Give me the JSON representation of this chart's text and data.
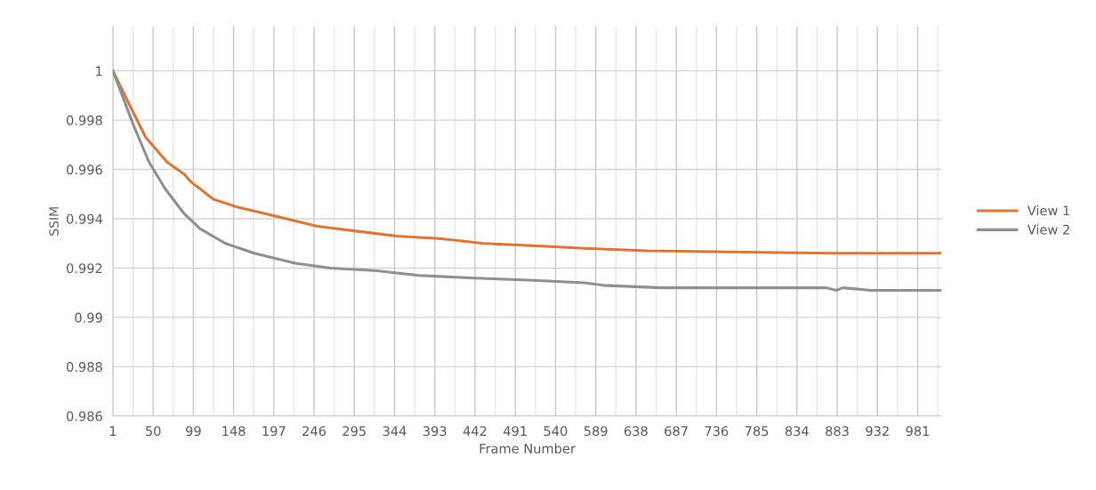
{
  "chart_data": {
    "type": "line",
    "xlabel": "Frame Number",
    "ylabel": "SSIM",
    "xlim": [
      1,
      1010
    ],
    "ylim": [
      0.986,
      1.0018
    ],
    "xticks": [
      1,
      {
        "value": 25.5,
        "label": null
      },
      50,
      {
        "value": 74.5,
        "label": null
      },
      99,
      {
        "value": 123.5,
        "label": null
      },
      148,
      {
        "value": 172.5,
        "label": null
      },
      197,
      {
        "value": 221.5,
        "label": null
      },
      246,
      {
        "value": 270.5,
        "label": null
      },
      295,
      {
        "value": 319.5,
        "label": null
      },
      344,
      {
        "value": 368.5,
        "label": null
      },
      393,
      {
        "value": 417.5,
        "label": null
      },
      442,
      {
        "value": 466.5,
        "label": null
      },
      491,
      {
        "value": 515.5,
        "label": null
      },
      540,
      {
        "value": 564.5,
        "label": null
      },
      589,
      {
        "value": 613.5,
        "label": null
      },
      638,
      {
        "value": 662.5,
        "label": null
      },
      687,
      {
        "value": 711.5,
        "label": null
      },
      736,
      {
        "value": 760.5,
        "label": null
      },
      785,
      {
        "value": 809.5,
        "label": null
      },
      834,
      {
        "value": 858.5,
        "label": null
      },
      883,
      {
        "value": 907.5,
        "label": null
      },
      932,
      {
        "value": 956.5,
        "label": null
      },
      981,
      {
        "value": 1005.5,
        "label": null
      }
    ],
    "yticks": [
      0.986,
      0.988,
      0.99,
      0.992,
      0.994,
      0.996,
      0.998,
      1
    ],
    "grid": true,
    "legend": "right",
    "marker": "none",
    "line_style": "solid",
    "series": [
      {
        "name": "View 1",
        "color": "#d9773a",
        "x": [
          1,
          26,
          41,
          67,
          88,
          96,
          123,
          150,
          200,
          249,
          297,
          347,
          398,
          452,
          518,
          575,
          652,
          874,
          1010
        ],
        "values": [
          1.0,
          0.9983,
          0.9973,
          0.9963,
          0.9958,
          0.9955,
          0.9948,
          0.9945,
          0.9941,
          0.9937,
          0.9935,
          0.9933,
          0.9932,
          0.993,
          0.9929,
          0.9928,
          0.9927,
          0.9926,
          0.9926
        ]
      },
      {
        "name": "View 2",
        "color": "#8f8f8f",
        "x": [
          1,
          26,
          45,
          65,
          88,
          107,
          138,
          173,
          223,
          266,
          320,
          374,
          436,
          514,
          575,
          598,
          670,
          870,
          882,
          890,
          924,
          1010
        ],
        "values": [
          1.0,
          0.9978,
          0.9963,
          0.9952,
          0.9942,
          0.9936,
          0.993,
          0.9926,
          0.9922,
          0.992,
          0.9919,
          0.9917,
          0.9916,
          0.9915,
          0.9914,
          0.9913,
          0.9912,
          0.9912,
          0.9911,
          0.9912,
          0.9911,
          0.9911
        ]
      }
    ]
  }
}
